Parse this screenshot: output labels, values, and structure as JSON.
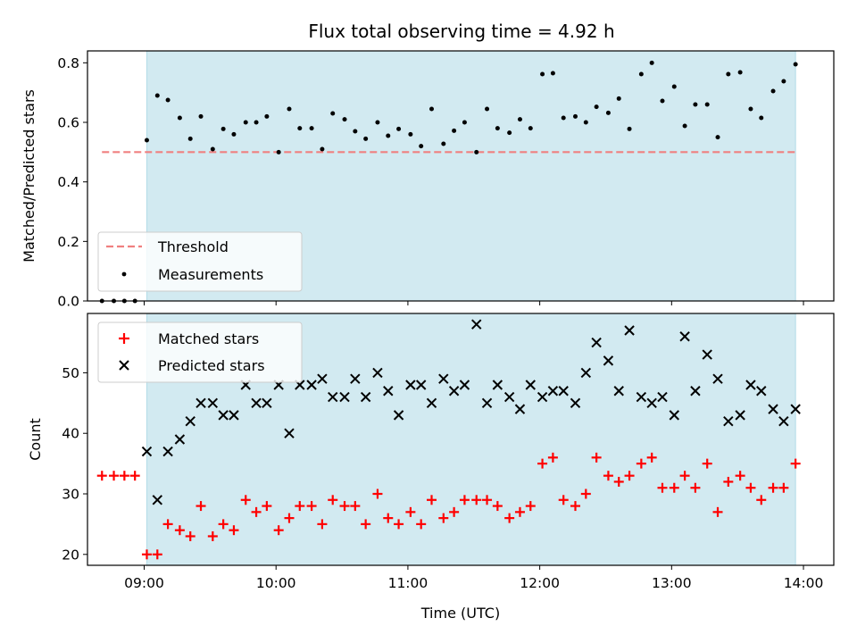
{
  "chart_data": {
    "title": "Flux total observing time = 4.92 h",
    "xlabel": "Time (UTC)",
    "x_tick_labels": [
      "09:00",
      "10:00",
      "11:00",
      "12:00",
      "13:00",
      "14:00"
    ],
    "x_ticks_hours": [
      9,
      10,
      11,
      12,
      13,
      14
    ],
    "xlim_hours": [
      8.57,
      14.23
    ],
    "observing_window_hours": [
      9.02,
      13.94
    ],
    "colors": {
      "window": "#add8e6",
      "threshold": "#f08080",
      "measurements": "#000000",
      "matched": "#ff0000",
      "predicted": "#000000"
    },
    "panels": [
      {
        "type": "scatter",
        "ylabel": "Matched/Predicted stars",
        "ylim": [
          0,
          0.84
        ],
        "y_ticks": [
          0,
          0.2,
          0.4,
          0.6,
          0.8
        ],
        "y_tick_labels": [
          "0.0",
          "0.2",
          "0.4",
          "0.6",
          "0.8"
        ],
        "legend_position": "lower-left",
        "threshold": {
          "name": "Threshold",
          "value": 0.5,
          "x_range_hours": [
            8.68,
            13.94
          ]
        },
        "series": [
          {
            "name": "Measurements",
            "marker": "dot",
            "x": [
              8.68,
              8.77,
              8.85,
              8.93,
              9.02,
              9.1,
              9.18,
              9.27,
              9.35,
              9.43,
              9.52,
              9.6,
              9.68,
              9.77,
              9.85,
              9.93,
              10.02,
              10.1,
              10.18,
              10.27,
              10.35,
              10.43,
              10.52,
              10.6,
              10.68,
              10.77,
              10.85,
              10.93,
              11.02,
              11.1,
              11.18,
              11.27,
              11.35,
              11.43,
              11.52,
              11.6,
              11.68,
              11.77,
              11.85,
              11.93,
              12.02,
              12.1,
              12.18,
              12.27,
              12.35,
              12.43,
              12.52,
              12.6,
              12.68,
              12.77,
              12.85,
              12.93,
              13.02,
              13.1,
              13.18,
              13.27,
              13.35,
              13.43,
              13.52,
              13.6,
              13.68,
              13.77,
              13.85,
              13.94
            ],
            "y": [
              0.0,
              0.0,
              0.0,
              0.0,
              0.54,
              0.69,
              0.675,
              0.615,
              0.545,
              0.62,
              0.51,
              0.578,
              0.56,
              0.6,
              0.6,
              0.62,
              0.5,
              0.645,
              0.58,
              0.58,
              0.51,
              0.63,
              0.61,
              0.57,
              0.545,
              0.6,
              0.555,
              0.578,
              0.56,
              0.52,
              0.645,
              0.528,
              0.572,
              0.6,
              0.5,
              0.645,
              0.58,
              0.565,
              0.61,
              0.58,
              0.762,
              0.765,
              0.615,
              0.62,
              0.6,
              0.652,
              0.632,
              0.68,
              0.578,
              0.762,
              0.8,
              0.672,
              0.72,
              0.588,
              0.66,
              0.66,
              0.55,
              0.762,
              0.768,
              0.645,
              0.615,
              0.705,
              0.738,
              0.795
            ]
          }
        ]
      },
      {
        "type": "scatter",
        "ylabel": "Count",
        "ylim": [
          18.2,
          59.8
        ],
        "y_ticks": [
          20,
          30,
          40,
          50
        ],
        "y_tick_labels": [
          "20",
          "30",
          "40",
          "50"
        ],
        "legend_position": "upper-left",
        "series": [
          {
            "name": "Matched stars",
            "marker": "plus",
            "x": [
              8.68,
              8.77,
              8.85,
              8.93,
              9.02,
              9.1,
              9.18,
              9.27,
              9.35,
              9.43,
              9.52,
              9.6,
              9.68,
              9.77,
              9.85,
              9.93,
              10.02,
              10.1,
              10.18,
              10.27,
              10.35,
              10.43,
              10.52,
              10.6,
              10.68,
              10.77,
              10.85,
              10.93,
              11.02,
              11.1,
              11.18,
              11.27,
              11.35,
              11.43,
              11.52,
              11.6,
              11.68,
              11.77,
              11.85,
              11.93,
              12.02,
              12.1,
              12.18,
              12.27,
              12.35,
              12.43,
              12.52,
              12.6,
              12.68,
              12.77,
              12.85,
              12.93,
              13.02,
              13.1,
              13.18,
              13.27,
              13.35,
              13.43,
              13.52,
              13.6,
              13.68,
              13.77,
              13.85,
              13.94
            ],
            "y": [
              33,
              33,
              33,
              33,
              20,
              20,
              25,
              24,
              23,
              28,
              23,
              25,
              24,
              29,
              27,
              28,
              24,
              26,
              28,
              28,
              25,
              29,
              28,
              28,
              25,
              30,
              26,
              25,
              27,
              25,
              29,
              26,
              27,
              29,
              29,
              29,
              28,
              26,
              27,
              28,
              35,
              36,
              29,
              28,
              30,
              36,
              33,
              32,
              33,
              35,
              36,
              31,
              31,
              33,
              31,
              35,
              27,
              32,
              33,
              31,
              29,
              31,
              31,
              35
            ]
          },
          {
            "name": "Predicted stars",
            "marker": "x",
            "x": [
              9.02,
              9.1,
              9.18,
              9.27,
              9.35,
              9.43,
              9.52,
              9.6,
              9.68,
              9.77,
              9.85,
              9.93,
              10.02,
              10.1,
              10.18,
              10.27,
              10.35,
              10.43,
              10.52,
              10.6,
              10.68,
              10.77,
              10.85,
              10.93,
              11.02,
              11.1,
              11.18,
              11.27,
              11.35,
              11.43,
              11.52,
              11.6,
              11.68,
              11.77,
              11.85,
              11.93,
              12.02,
              12.1,
              12.18,
              12.27,
              12.35,
              12.43,
              12.52,
              12.6,
              12.68,
              12.77,
              12.85,
              12.93,
              13.02,
              13.1,
              13.18,
              13.27,
              13.35,
              13.43,
              13.52,
              13.6,
              13.68,
              13.77,
              13.85,
              13.94
            ],
            "y": [
              37,
              29,
              37,
              39,
              42,
              45,
              45,
              43,
              43,
              48,
              45,
              45,
              48,
              40,
              48,
              48,
              49,
              46,
              46,
              49,
              46,
              50,
              47,
              43,
              48,
              48,
              45,
              49,
              47,
              48,
              58,
              45,
              48,
              46,
              44,
              48,
              46,
              47,
              47,
              45,
              50,
              55,
              52,
              47,
              57,
              46,
              45,
              46,
              43,
              56,
              47,
              53,
              49,
              42,
              43,
              48,
              47,
              44,
              42,
              44
            ]
          }
        ]
      }
    ]
  }
}
